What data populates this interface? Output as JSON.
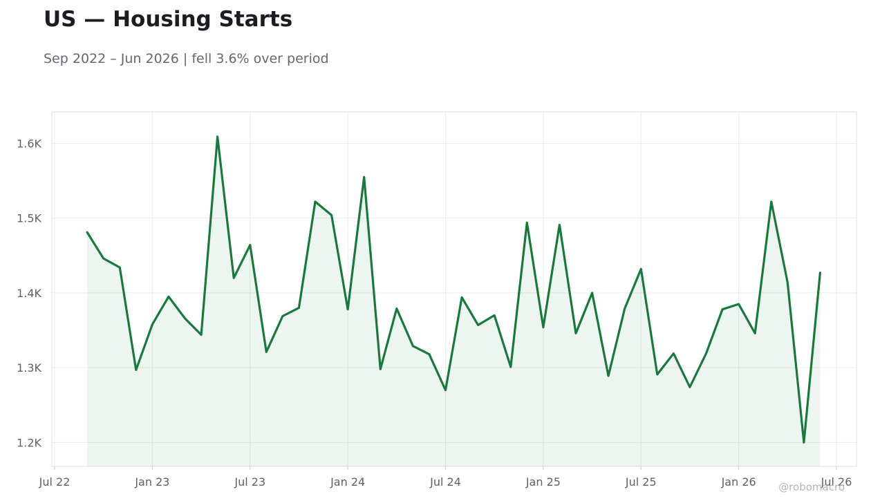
{
  "header": {
    "title": "US — Housing Starts",
    "subtitle": "Sep 2022 – Jun 2026 | fell 3.6% over period"
  },
  "credit": "@robomacro",
  "colors": {
    "line": "#177a3c",
    "fill": "#177a3c",
    "grid": "#ececec",
    "frame": "#dedede"
  },
  "chart_data": {
    "type": "area",
    "title": "US — Housing Starts",
    "subtitle": "Sep 2022 – Jun 2026 | fell 3.6% over period",
    "xlabel": "",
    "ylabel": "",
    "grid": true,
    "x_ticks": [
      "Jul 22",
      "Jan 23",
      "Jul 23",
      "Jan 24",
      "Jul 24",
      "Jan 25",
      "Jul 25",
      "Jan 26",
      "Jul 26"
    ],
    "y_ticks": [
      "1.2K",
      "1.3K",
      "1.4K",
      "1.5K",
      "1.6K"
    ],
    "y_tick_values": [
      1200,
      1300,
      1400,
      1500,
      1600
    ],
    "ylim": [
      1168,
      1642
    ],
    "xlim": [
      "2022-07",
      "2026-07"
    ],
    "series": [
      {
        "x": [
          "2022-09",
          "2022-10",
          "2022-11",
          "2022-12",
          "2023-01",
          "2023-02",
          "2023-03",
          "2023-04",
          "2023-05",
          "2023-06",
          "2023-07",
          "2023-08",
          "2023-09",
          "2023-10",
          "2023-11",
          "2023-12",
          "2024-01",
          "2024-02",
          "2024-03",
          "2024-04",
          "2024-05",
          "2024-06",
          "2024-07",
          "2024-08",
          "2024-09",
          "2024-10",
          "2024-11",
          "2024-12",
          "2025-01",
          "2025-02",
          "2025-03",
          "2025-04",
          "2025-05",
          "2025-06",
          "2025-07",
          "2025-08",
          "2025-09",
          "2025-10",
          "2025-11",
          "2025-12",
          "2026-01",
          "2026-02",
          "2026-03",
          "2026-04",
          "2026-05",
          "2026-06"
        ],
        "values": [
          1481,
          1446,
          1434,
          1297,
          1358,
          1395,
          1366,
          1344,
          1609,
          1420,
          1464,
          1321,
          1369,
          1380,
          1522,
          1504,
          1378,
          1555,
          1298,
          1379,
          1329,
          1318,
          1270,
          1394,
          1357,
          1370,
          1301,
          1494,
          1354,
          1491,
          1346,
          1400,
          1289,
          1379,
          1432,
          1291,
          1319,
          1274,
          1319,
          1378,
          1385,
          1346,
          1522,
          1414,
          1200,
          1427
        ]
      }
    ]
  }
}
